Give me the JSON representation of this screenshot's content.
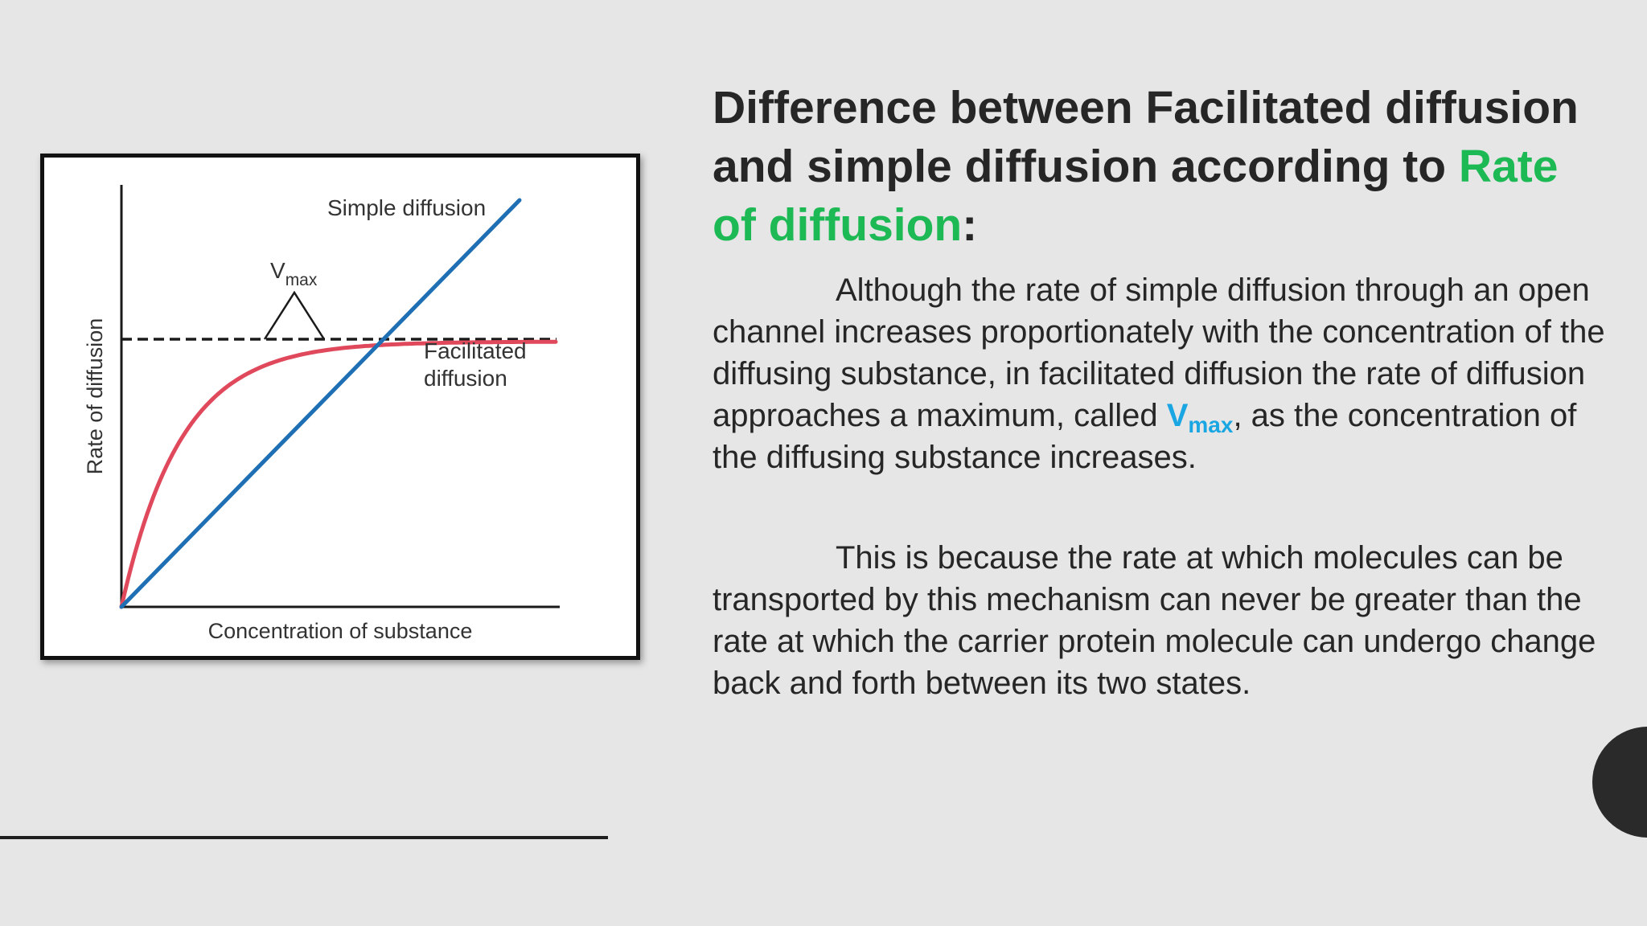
{
  "slide": {
    "title_part1": "Difference between Facilitated diffusion and simple diffusion according to ",
    "title_accent": "Rate of diffusion",
    "title_end": ":",
    "accent_color": "#1db954",
    "vmax_color": "#1aa6e2",
    "paragraph1_before": "Although the rate of simple diffusion through an open channel increases proportionately with the concentration of the diffusing substance, in facilitated diffusion the rate of diffusion approaches a maximum, called ",
    "paragraph1_vmax": "V",
    "paragraph1_vmax_sub": "max",
    "paragraph1_after": ", as the concentration of the diffusing substance increases.",
    "paragraph2": "This is because the rate at which molecules can be transported by this mechanism can never be greater than the rate at which the carrier protein molecule can undergo change back and forth between its two states."
  },
  "chart_data": {
    "type": "line",
    "xlabel": "Concentration of substance",
    "ylabel": "Rate of diffusion",
    "series": [
      {
        "name": "Simple diffusion",
        "color": "#1f6fb4",
        "shape": "linear"
      },
      {
        "name": "Facilitated diffusion",
        "color": "#e0495c",
        "shape": "saturating"
      }
    ],
    "annotations": {
      "vmax_main": "V",
      "vmax_sub": "max",
      "vmax_line": "dashed",
      "facilitated_label_line1": "Facilitated",
      "facilitated_label_line2": "diffusion"
    }
  }
}
